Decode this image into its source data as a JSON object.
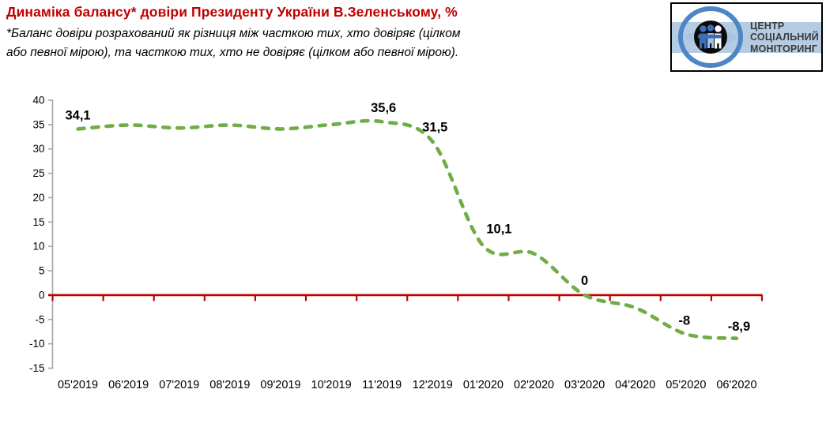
{
  "header": {
    "title": "Динаміка балансу* довіри Президенту України В.Зеленському, %",
    "subtitle_line1": "*Баланс довіри розрахований як різниця між часткою тих, хто довіряє (цілком",
    "subtitle_line2": "або певної мірою), та часткою тих, хто не довіряє (цілком або певної мірою)."
  },
  "logo": {
    "line1": "ЦЕНТР",
    "line2": "СОЦІАЛЬНИЙ",
    "line3": "МОНІТОРИНГ"
  },
  "chart_data": {
    "type": "line",
    "title": "Динаміка балансу довіри",
    "categories": [
      "05'2019",
      "06'2019",
      "07'2019",
      "08'2019",
      "09'2019",
      "10'2019",
      "11'2019",
      "12'2019",
      "01'2020",
      "02'2020",
      "03'2020",
      "04'2020",
      "05'2020",
      "06'2020"
    ],
    "values": [
      34.1,
      34.9,
      34.3,
      34.9,
      34.1,
      35.0,
      35.6,
      31.5,
      10.1,
      8.5,
      0,
      -2.6,
      -8,
      -8.9
    ],
    "point_labels": [
      {
        "index": 0,
        "text": "34,1"
      },
      {
        "index": 6,
        "text": "35,6"
      },
      {
        "index": 7,
        "text": "31,5"
      },
      {
        "index": 8,
        "text": "10,1"
      },
      {
        "index": 10,
        "text": "0"
      },
      {
        "index": 12,
        "text": "-8"
      },
      {
        "index": 13,
        "text": "-8,9"
      }
    ],
    "ylim": [
      -15,
      40
    ],
    "ytick_step": 5,
    "ytick_labels": [
      "40",
      "35",
      "30",
      "25",
      "20",
      "15",
      "10",
      "5",
      "0",
      "-5",
      "-10",
      "-15"
    ],
    "xlabel": "",
    "ylabel": "",
    "grid": false,
    "legend": "none",
    "line_color": "#70AD47",
    "line_style": "dashed",
    "zero_line_color": "#C00000",
    "axis_color": "#A6A6A6",
    "label_color": "#000000"
  }
}
